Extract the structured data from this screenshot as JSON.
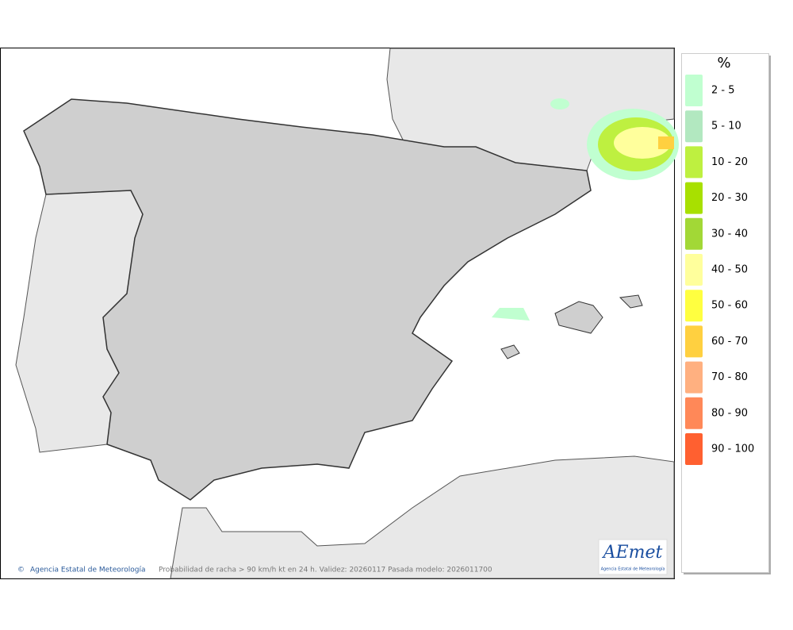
{
  "legend": {
    "title": "%",
    "items": [
      {
        "label": "2 - 5",
        "color": "#c0ffd0"
      },
      {
        "label": "5 - 10",
        "color": "#b2e8c0"
      },
      {
        "label": "10 - 20",
        "color": "#bef040"
      },
      {
        "label": "20 - 30",
        "color": "#a8e000"
      },
      {
        "label": "30 - 40",
        "color": "#a2d836"
      },
      {
        "label": "40 - 50",
        "color": "#ffff9c"
      },
      {
        "label": "50 - 60",
        "color": "#ffff40"
      },
      {
        "label": "60 - 70",
        "color": "#ffd040"
      },
      {
        "label": "70 - 80",
        "color": "#ffb080"
      },
      {
        "label": "80 - 90",
        "color": "#ff8858"
      },
      {
        "label": "90 - 100",
        "color": "#ff6030"
      }
    ]
  },
  "footer": {
    "credit": "Agencia Estatal de Meteorología",
    "caption": "Probabilidad de racha > 90 km/h kt en 24 h. Validez: 20260117 Pasada modelo: 2026011700"
  },
  "logo": {
    "name": "AEmet",
    "subtitle": "Agencia Estatal de Meteorología"
  }
}
